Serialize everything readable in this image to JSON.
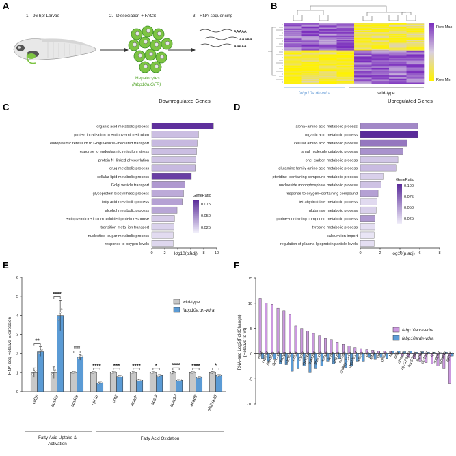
{
  "panelA": {
    "letter": "A",
    "steps": [
      {
        "num": "1.",
        "label": "96 hpf Larvae"
      },
      {
        "num": "2.",
        "label": "Dissociation + FACS"
      },
      {
        "num": "3.",
        "label": "RNA-sequencing"
      }
    ],
    "hepatocytes_label": "Hepatocytes",
    "reporter_label": "(fabp10a:GFP)",
    "reads": [
      "AAAAA",
      "AAAAA",
      "AAAAA"
    ],
    "colors": {
      "gfp": "#7dc443",
      "gfp_dark": "#3f8f2a",
      "label_green": "#5aa832"
    }
  },
  "panelB": {
    "letter": "B",
    "legend_max": "Row Max",
    "legend_min": "Row Min",
    "group_left": "fabp10a:dn-vdra",
    "group_right": "wild-type",
    "colors": {
      "high": "#7b2fbe",
      "mid": "#c9b3d9",
      "low": "#fff200",
      "left_label": "#6a9fd8"
    }
  },
  "panelC": {
    "letter": "C",
    "title": "Downregulated Genes",
    "xlabel": "−log10(p.adj)",
    "xticks": [
      "0",
      "2",
      "4",
      "6",
      "8",
      "10"
    ],
    "legend_title": "GeneRatio",
    "legend_ticks": [
      "0.075",
      "0.050",
      "0.025"
    ]
  },
  "panelD": {
    "letter": "D",
    "title": "Upregulated Genes",
    "xlabel": "−log10(p.adj)",
    "xticks": [
      "0",
      "2",
      "4",
      "6",
      "8"
    ],
    "legend_title": "GeneRatio",
    "legend_ticks": [
      "0.100",
      "0.075",
      "0.050",
      "0.025"
    ]
  },
  "panelE": {
    "letter": "E",
    "ylabel": "RNA-seq Relative Expression",
    "yticks": [
      "0",
      "1",
      "2",
      "3",
      "4",
      "5",
      "6"
    ],
    "legend": [
      {
        "label": "wild-type",
        "color": "#c8c8c8"
      },
      {
        "label": "fabp10a:dn-vdra",
        "color": "#5b9bd5"
      }
    ],
    "group_labels": [
      "Fatty Acid Uptake &",
      "Activation",
      "Fatty Acid Oxidation"
    ]
  },
  "panelF": {
    "letter": "F",
    "ylabel1": "RNA-seq Log2(FoldChange)",
    "ylabel2": "(Relative to wt)",
    "yticks": [
      "15",
      "10",
      "5",
      "0",
      "-5",
      "-10"
    ],
    "legend": [
      {
        "label": "fabp10a:ca-vdra",
        "color": "#cc99e0"
      },
      {
        "label": "fabp10a:dn-vdra",
        "color": "#5b9bd5"
      }
    ]
  },
  "chart_data": [
    {
      "type": "bar",
      "orientation": "horizontal",
      "title": "Downregulated Genes",
      "xlabel": "−log10(p.adj)",
      "xlim": [
        0,
        10
      ],
      "legend": "GeneRatio",
      "categories": [
        "organic acid metabolic process",
        "protein localization to endoplasmic reticulum",
        "endoplasmic reticulum to Golgi vesicle−mediated transport",
        "response to endoplasmic reticulum stress",
        "protein N−linked glycosylation",
        "drug metabolic process",
        "cellular lipid metabolic process",
        "Golgi vesicle transport",
        "glycoprotein biosynthetic process",
        "fatty acid metabolic process",
        "alcohol metabolic process",
        "endoplasmic reticulum unfolded protein response",
        "transition metal ion transport",
        "nucleotide−sugar metabolic process",
        "response to oxygen levels"
      ],
      "values": [
        9.5,
        7.2,
        7.0,
        6.9,
        6.8,
        6.7,
        6.1,
        5.1,
        4.9,
        4.7,
        3.9,
        3.5,
        3.4,
        3.3,
        3.3
      ],
      "gene_ratio": [
        0.088,
        0.03,
        0.032,
        0.03,
        0.028,
        0.032,
        0.082,
        0.045,
        0.038,
        0.042,
        0.04,
        0.025,
        0.022,
        0.018,
        0.02
      ]
    },
    {
      "type": "bar",
      "orientation": "horizontal",
      "title": "Upregulated Genes",
      "xlabel": "−log10(p.adj)",
      "xlim": [
        0,
        8
      ],
      "legend": "GeneRatio",
      "categories": [
        "alpha−amino acid metabolic process",
        "organic acid metabolic process",
        "cellular amino acid metabolic process",
        "small molecule catabolic process",
        "one−carbon metabolic process",
        "glutamine family amino acid metabolic process",
        "pteridine−containing compound metabolic process",
        "nucleoside monophosphate metabolic process",
        "response to oxygen−containing compound",
        "tetrahydrofolate metabolic process",
        "glutamate metabolic process",
        "purine−containing compound metabolic process",
        "tyrosine metabolic process",
        "calcium ion import",
        "regulation of plasma lipoprotein particle levels"
      ],
      "values": [
        5.8,
        5.8,
        4.7,
        4.3,
        3.8,
        3.6,
        2.3,
        2.1,
        1.8,
        1.7,
        1.6,
        1.5,
        1.5,
        1.4,
        1.4
      ],
      "gene_ratio": [
        0.06,
        0.105,
        0.068,
        0.055,
        0.03,
        0.035,
        0.025,
        0.032,
        0.048,
        0.02,
        0.025,
        0.052,
        0.018,
        0.015,
        0.018
      ]
    },
    {
      "type": "bar",
      "ylabel": "RNA-seq Relative Expression",
      "ylim": [
        0,
        6
      ],
      "categories": [
        "cd36",
        "acsl4a",
        "acsl4b",
        "cpt1b",
        "cpt2",
        "acads",
        "acadl",
        "acadvl",
        "acad9",
        "slc25a20"
      ],
      "series": [
        {
          "name": "wild-type",
          "values": [
            1.0,
            1.0,
            1.0,
            1.0,
            1.0,
            1.0,
            1.0,
            1.0,
            1.0,
            1.0
          ],
          "errors": [
            0.25,
            0.3,
            0.05,
            0.05,
            0.05,
            0.05,
            0.05,
            0.07,
            0.05,
            0.06
          ]
        },
        {
          "name": "fabp10a:dn-vdra",
          "values": [
            2.1,
            4.0,
            1.8,
            0.45,
            0.8,
            0.6,
            0.85,
            0.6,
            0.75,
            0.85
          ],
          "errors": [
            0.25,
            0.8,
            0.15,
            0.05,
            0.04,
            0.04,
            0.05,
            0.05,
            0.05,
            0.05
          ]
        }
      ],
      "significance": [
        "**",
        "****",
        "***",
        "****",
        "***",
        "****",
        "*",
        "****",
        "****",
        "*"
      ],
      "groups": [
        {
          "label": "Fatty Acid Uptake & Activation",
          "categories": [
            "cd36",
            "acsl4a",
            "acsl4b"
          ]
        },
        {
          "label": "Fatty Acid Oxidation",
          "categories": [
            "cpt1b",
            "cpt2",
            "acads",
            "acadl",
            "acadvl",
            "acad9",
            "slc25a20"
          ]
        }
      ]
    },
    {
      "type": "bar",
      "ylabel": "RNA-seq Log2(FoldChange) (Relative to wt)",
      "ylim": [
        -10,
        15
      ],
      "categories": [
        "ezh8",
        "cyp2k9",
        "fam118b",
        "dync1i2b",
        "stxbp5",
        "cyp8b1",
        "nr1d1",
        "fbp1b",
        "cyp24a1",
        "ankrd39",
        "atp1a1a",
        "ralbpa",
        "fthl1a",
        "ptgdsb",
        "ccl-c5a",
        "si:dkey-7j14.5",
        "cyp27a1.4",
        "ctsl1b",
        "plg",
        "fetub",
        "ctsz",
        "ptmab",
        "fgg",
        "fabp",
        "dnase1",
        "zgc:173443",
        "hsp90aa1",
        "hspa8",
        "slc10a2",
        "fga",
        "angptl3",
        "apoa4b",
        "igfbp1"
      ],
      "series": [
        {
          "name": "fabp10a:ca-vdra",
          "values": [
            11,
            10,
            9.8,
            9.0,
            8.5,
            7.8,
            5.5,
            5.0,
            4.5,
            4.0,
            3.5,
            3.0,
            2.8,
            2.2,
            1.8,
            1.5,
            1.2,
            1.0,
            0.8,
            0.7,
            0.5,
            0.5,
            0.4,
            0.2,
            -0.5,
            -0.8,
            -1.0,
            -1.5,
            -1.8,
            -2.0,
            -2.5,
            -3.0,
            -6.0
          ]
        },
        {
          "name": "fabp10a:dn-vdra",
          "values": [
            -1.0,
            -1.5,
            -1.2,
            -2.0,
            -2.2,
            -3.5,
            -3.0,
            -2.5,
            -3.8,
            -3.0,
            -2.5,
            -1.5,
            -2.0,
            -1.0,
            -2.8,
            -2.5,
            -1.5,
            -1.5,
            -0.8,
            -1.2,
            -0.8,
            -1.0,
            0.5,
            0.5,
            0.4,
            0.5,
            0.3,
            0.4,
            0.3,
            0.3,
            0.2,
            0.3,
            -0.5
          ]
        }
      ]
    }
  ]
}
